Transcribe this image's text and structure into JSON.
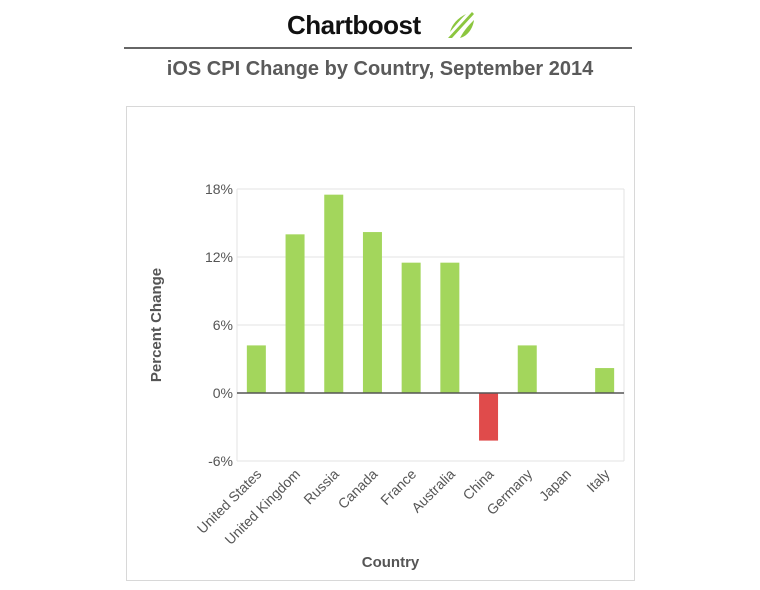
{
  "brand": {
    "name": "Chartboost",
    "accent_color": "#8cc63f"
  },
  "chart_data": {
    "type": "bar",
    "title": "iOS CPI Change by Country, September 2014",
    "xlabel": "Country",
    "ylabel": "Percent Change",
    "categories": [
      "United States",
      "United Kingdom",
      "Russia",
      "Canada",
      "France",
      "Australia",
      "China",
      "Germany",
      "Japan",
      "Italy"
    ],
    "values": [
      4.2,
      14.0,
      17.5,
      14.2,
      11.5,
      11.5,
      -4.2,
      4.2,
      0,
      2.2
    ],
    "ylim": [
      -6,
      18
    ],
    "yticks": [
      -6,
      0,
      6,
      12,
      18
    ],
    "ytick_labels": [
      "-6%",
      "0%",
      "6%",
      "12%",
      "18%"
    ],
    "grid": true,
    "colors": {
      "positive": "#a3d65c",
      "negative": "#e04b4b",
      "grid": "#e3e3e3",
      "zero_line": "#555555"
    }
  }
}
